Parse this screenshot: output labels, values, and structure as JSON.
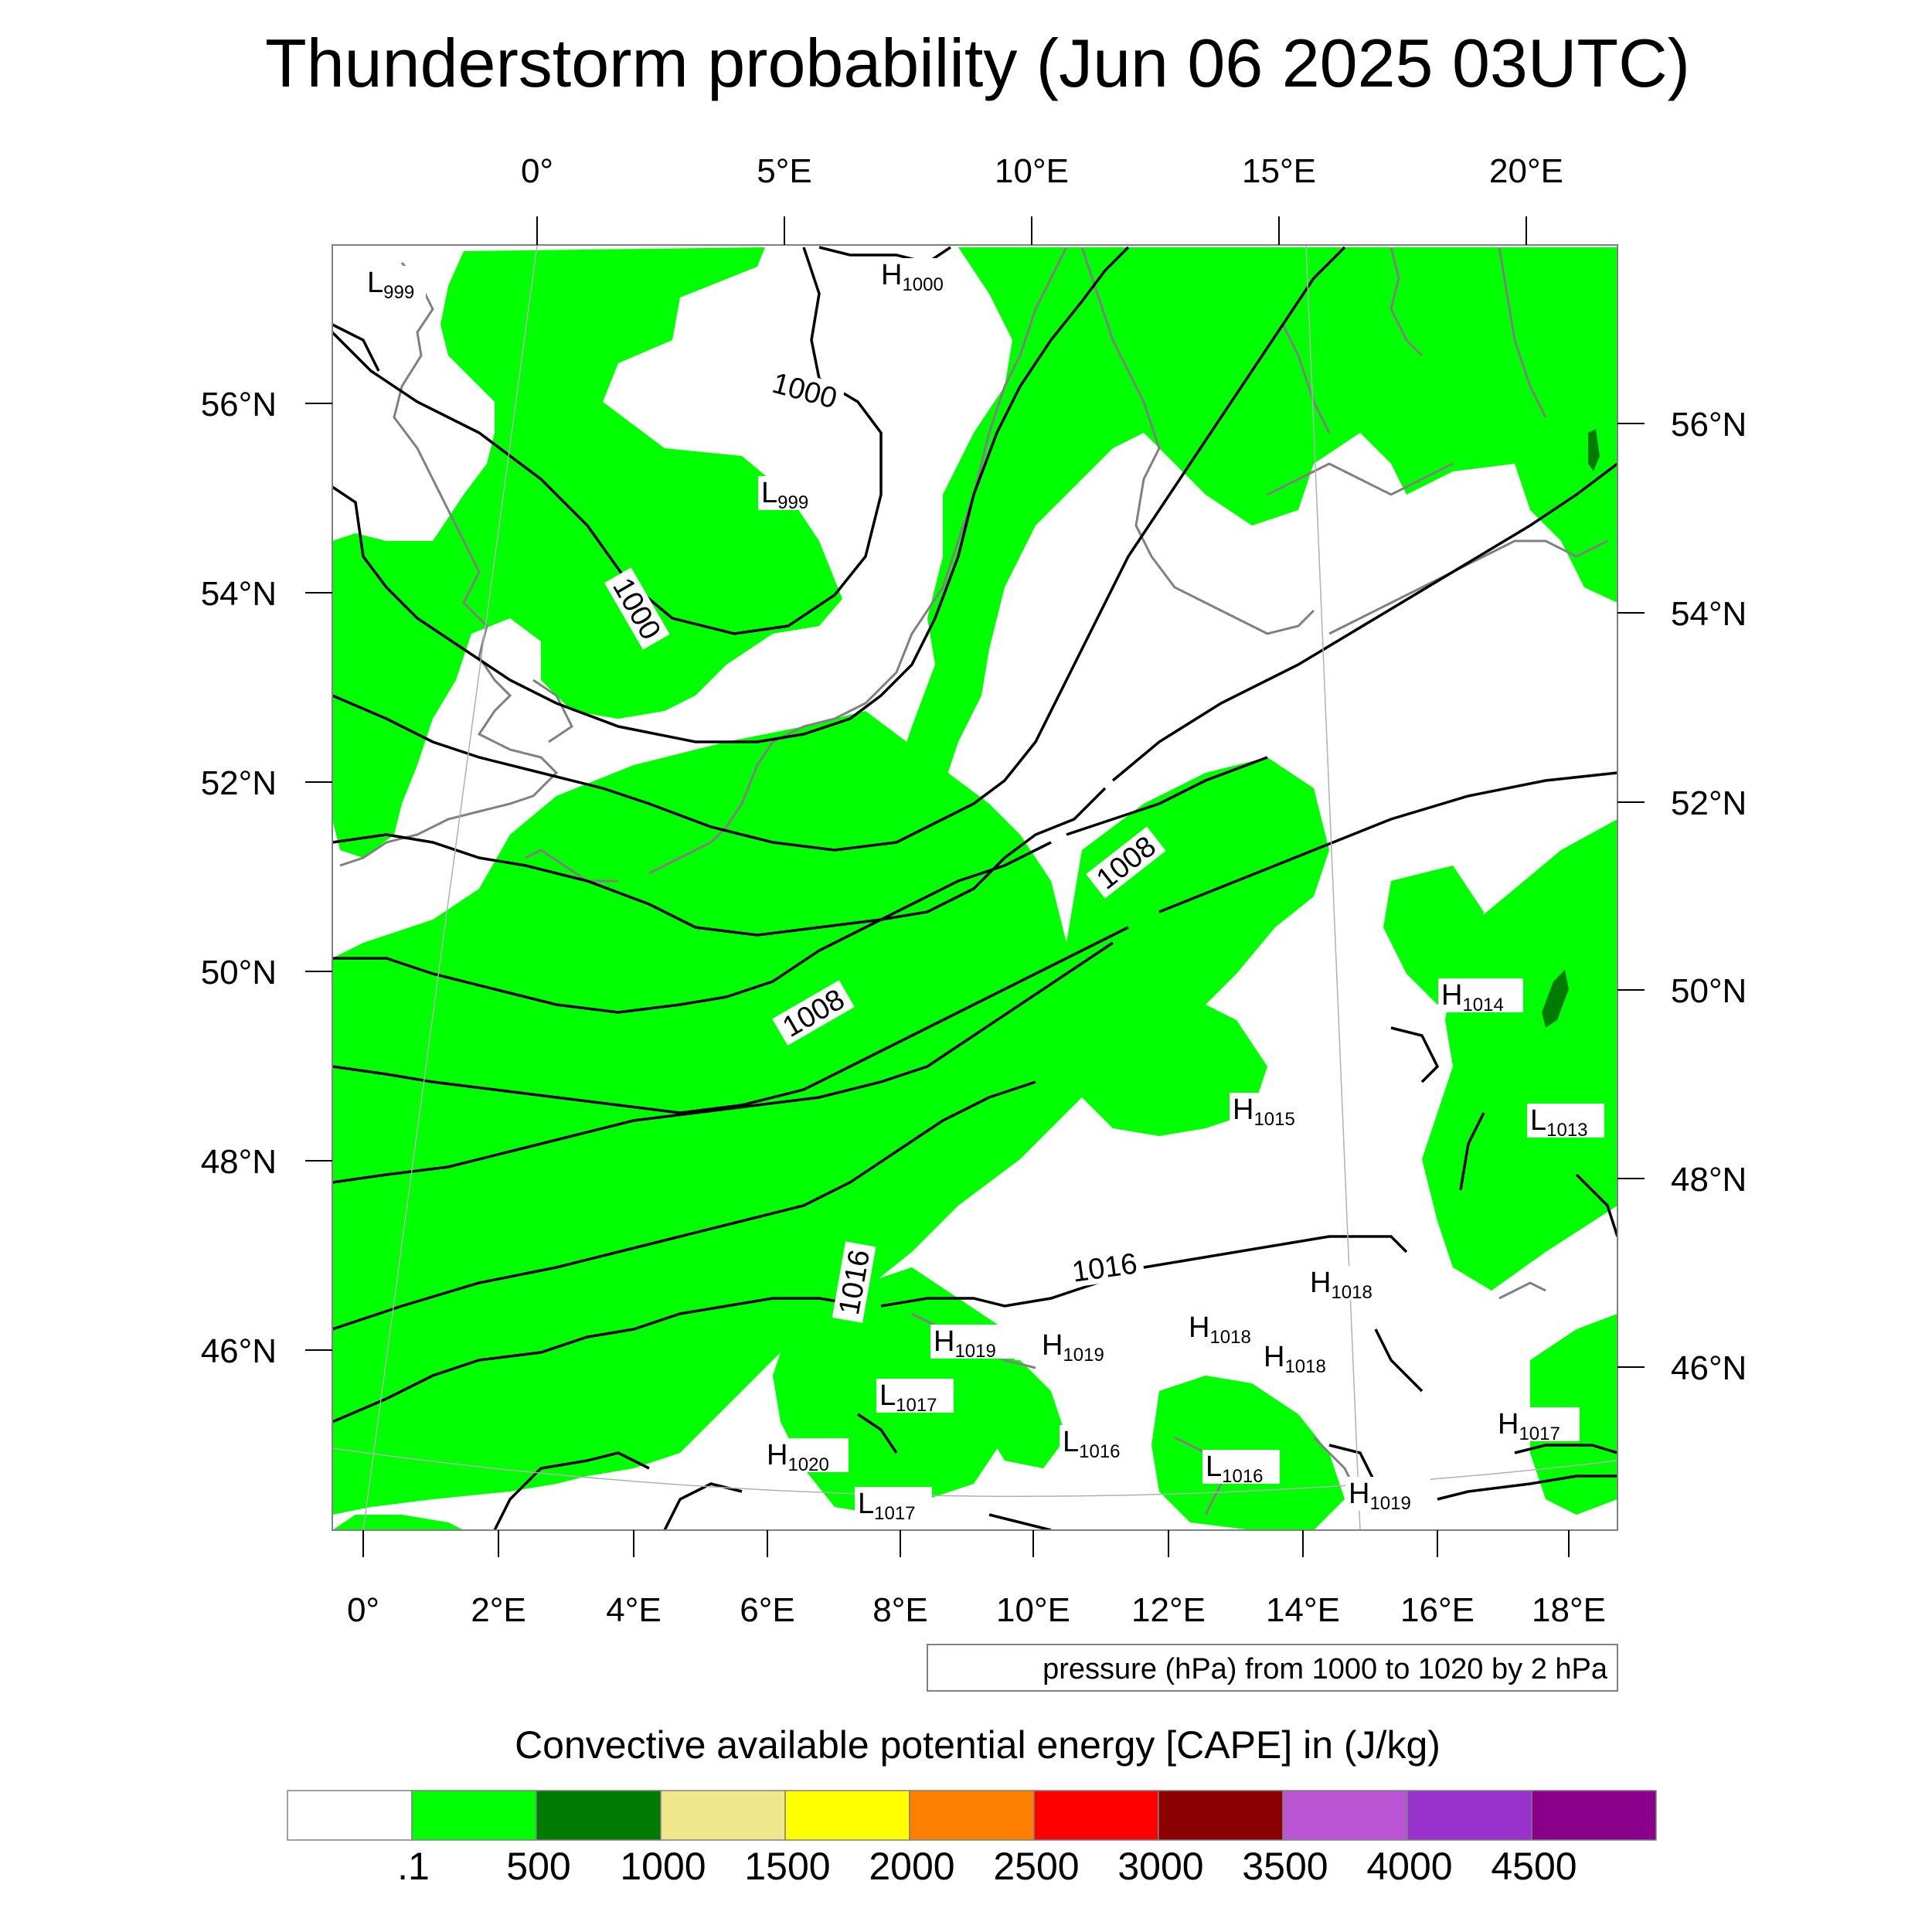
{
  "title": "Thunderstorm probability (Jun 06 2025 03UTC)",
  "top_lon_labels": [
    "0°",
    "5°E",
    "10°E",
    "15°E",
    "20°E"
  ],
  "bottom_lon_labels": [
    "0°",
    "2°E",
    "4°E",
    "6°E",
    "8°E",
    "10°E",
    "12°E",
    "14°E",
    "16°E",
    "18°E"
  ],
  "left_lat_labels": [
    "56°N",
    "54°N",
    "52°N",
    "50°N",
    "48°N",
    "46°N"
  ],
  "right_lat_labels": [
    "56°N",
    "54°N",
    "52°N",
    "50°N",
    "48°N",
    "46°N"
  ],
  "isobar_labels": [
    "1000",
    "1000",
    "1008",
    "1008",
    "1016",
    "1016"
  ],
  "pressure_centers": [
    {
      "type": "L",
      "value": "999"
    },
    {
      "type": "H",
      "value": "1000"
    },
    {
      "type": "L",
      "value": "999"
    },
    {
      "type": "H",
      "value": "1014"
    },
    {
      "type": "H",
      "value": "1015"
    },
    {
      "type": "L",
      "value": "1013"
    },
    {
      "type": "H",
      "value": "1018"
    },
    {
      "type": "H",
      "value": "1019"
    },
    {
      "type": "H",
      "value": "1019"
    },
    {
      "type": "H",
      "value": "1018"
    },
    {
      "type": "H",
      "value": "1018"
    },
    {
      "type": "L",
      "value": "1017"
    },
    {
      "type": "L",
      "value": "1016"
    },
    {
      "type": "L",
      "value": "1016"
    },
    {
      "type": "H",
      "value": "1017"
    },
    {
      "type": "H",
      "value": "1020"
    },
    {
      "type": "L",
      "value": "1017"
    },
    {
      "type": "H",
      "value": "1019"
    }
  ],
  "contour_note": "pressure (hPa) from 1000 to 1020 by 2 hPa",
  "colorbar": {
    "title": "Convective available potential energy [CAPE] in (J/kg)",
    "colors": [
      "#ffffff",
      "#00ff00",
      "#007a00",
      "#f0e68c",
      "#ffff00",
      "#ff8000",
      "#ff0000",
      "#8b0000",
      "#ba55d3",
      "#9932cc",
      "#8b008b"
    ],
    "labels": [
      ".1",
      "500",
      "1000",
      "1500",
      "2000",
      "2500",
      "3000",
      "3500",
      "4000",
      "4500"
    ]
  },
  "colors": {
    "cape_fill": "#00ff00",
    "cape_dark": "#007a00",
    "coastline": "#808080",
    "isobar": "#000000"
  }
}
